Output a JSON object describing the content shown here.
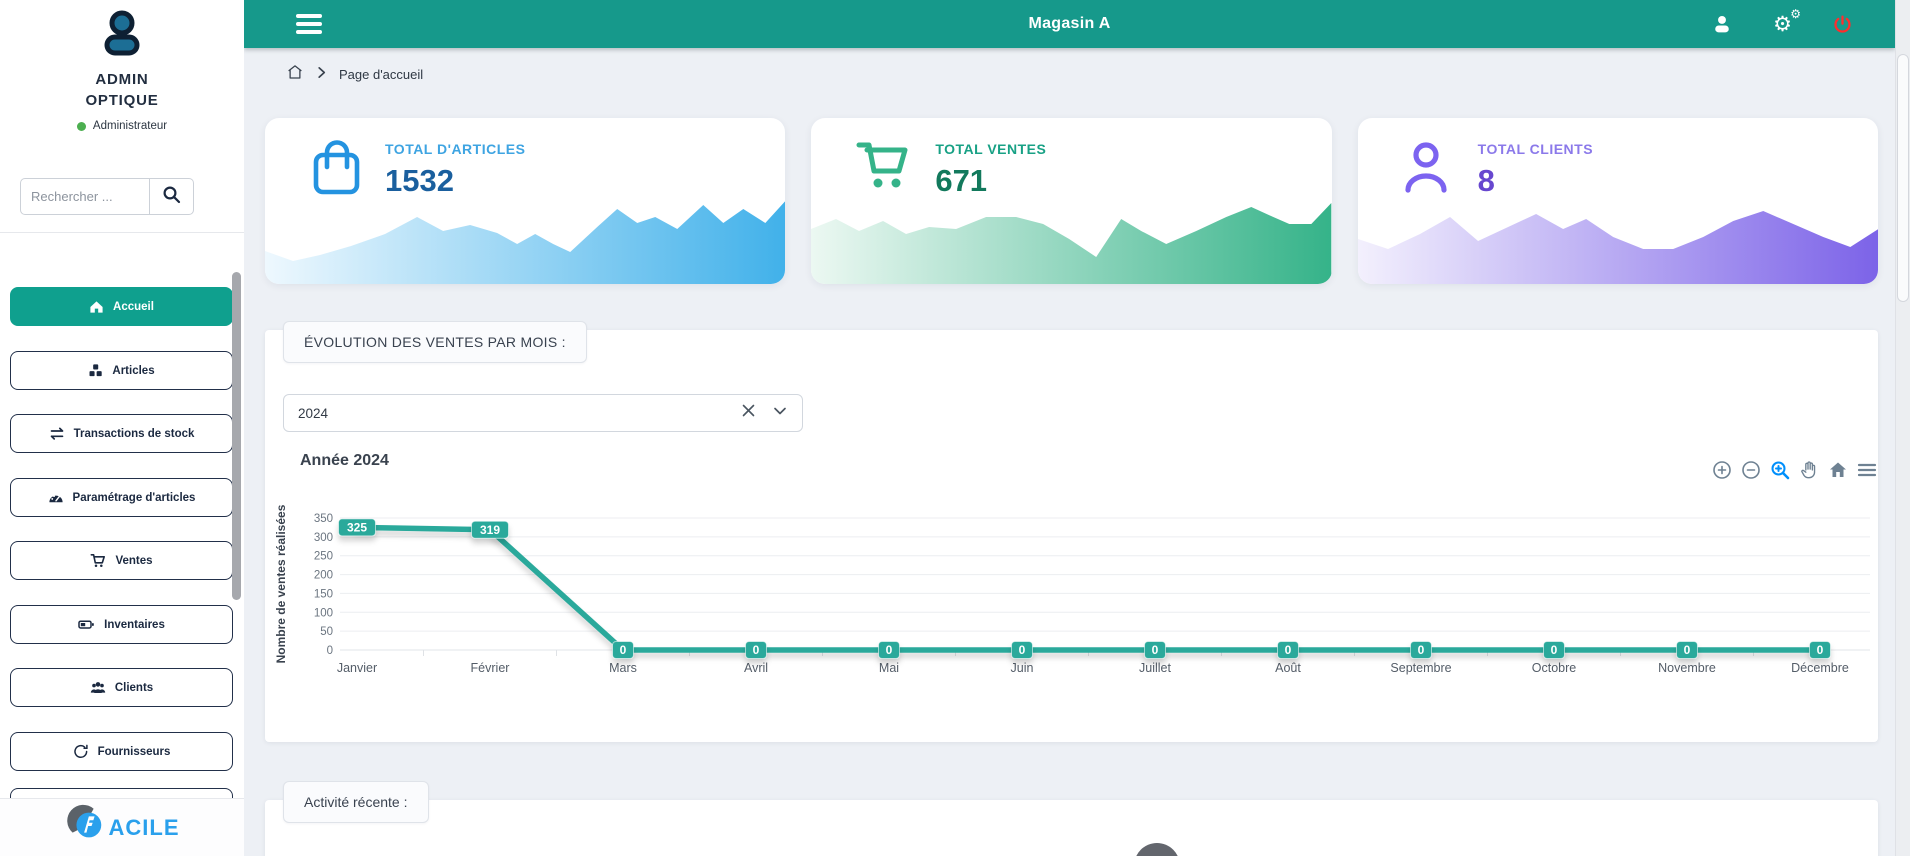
{
  "header": {
    "title": "Magasin A",
    "icons": [
      "hamburger-icon",
      "user-icon",
      "gears-icon",
      "power-icon"
    ]
  },
  "sidebar": {
    "user_name_line1": "ADMIN",
    "user_name_line2": "OPTIQUE",
    "user_role": "Administrateur",
    "search_placeholder": "Rechercher ...",
    "items": [
      {
        "label": "Accueil",
        "icon": "home-icon",
        "active": true
      },
      {
        "label": "Articles",
        "icon": "cubes-icon",
        "active": false
      },
      {
        "label": "Transactions de stock",
        "icon": "exchange-arrows-icon",
        "active": false
      },
      {
        "label": "Paramétrage d'articles",
        "icon": "gauge-icon",
        "active": false
      },
      {
        "label": "Ventes",
        "icon": "cart-icon",
        "active": false
      },
      {
        "label": "Inventaires",
        "icon": "battery-icon",
        "active": false
      },
      {
        "label": "Clients",
        "icon": "users-icon",
        "active": false
      },
      {
        "label": "Fournisseurs",
        "icon": "circular-arrow-icon",
        "active": false
      }
    ],
    "logo_text": "ACILE"
  },
  "breadcrumb": {
    "current": "Page d'accueil"
  },
  "stats": [
    {
      "label": "TOTAL D'ARTICLES",
      "value": "1532",
      "accent": "#2493e0",
      "value_color": "#1a5f9e",
      "icon": "shopping-bag-icon"
    },
    {
      "label": "TOTAL VENTES",
      "value": "671",
      "accent": "#35b389",
      "value_color": "#12795c",
      "icon": "shopping-cart-icon"
    },
    {
      "label": "TOTAL CLIENTS",
      "value": "8",
      "accent": "#7c63f0",
      "value_color": "#6747cf",
      "icon": "person-icon"
    }
  ],
  "sales_panel": {
    "tab_label": "ÉVOLUTION DES VENTES PAR MOIS :",
    "year_value": "2024",
    "toolbar_icons": [
      "zoom-in",
      "zoom-out",
      "selection-zoom",
      "pan",
      "reset-home",
      "menu"
    ]
  },
  "chart_data": {
    "type": "line",
    "title": "Année 2024",
    "ylabel": "Nombre de ventes réalisées",
    "categories": [
      "Janvier",
      "Février",
      "Mars",
      "Avril",
      "Mai",
      "Juin",
      "Juillet",
      "Août",
      "Septembre",
      "Octobre",
      "Novembre",
      "Décembre"
    ],
    "series": [
      {
        "name": "Ventes",
        "values": [
          325,
          319,
          0,
          0,
          0,
          0,
          0,
          0,
          0,
          0,
          0,
          0
        ]
      }
    ],
    "ylim": [
      0,
      350
    ],
    "yticks": [
      0,
      50,
      100,
      150,
      200,
      250,
      300,
      350
    ],
    "grid": true,
    "legend": "none",
    "data_labels": true,
    "line_color": "#2ba99b"
  },
  "recent_panel": {
    "tab_label": "Activité récente :"
  },
  "colors": {
    "header_teal": "#16998b",
    "active_item_teal": "#0fa08e",
    "logout_red": "#e8312f",
    "status_green": "#4caf50",
    "logo_blue": "#2aa0ec",
    "content_bg": "#edf0f5"
  }
}
